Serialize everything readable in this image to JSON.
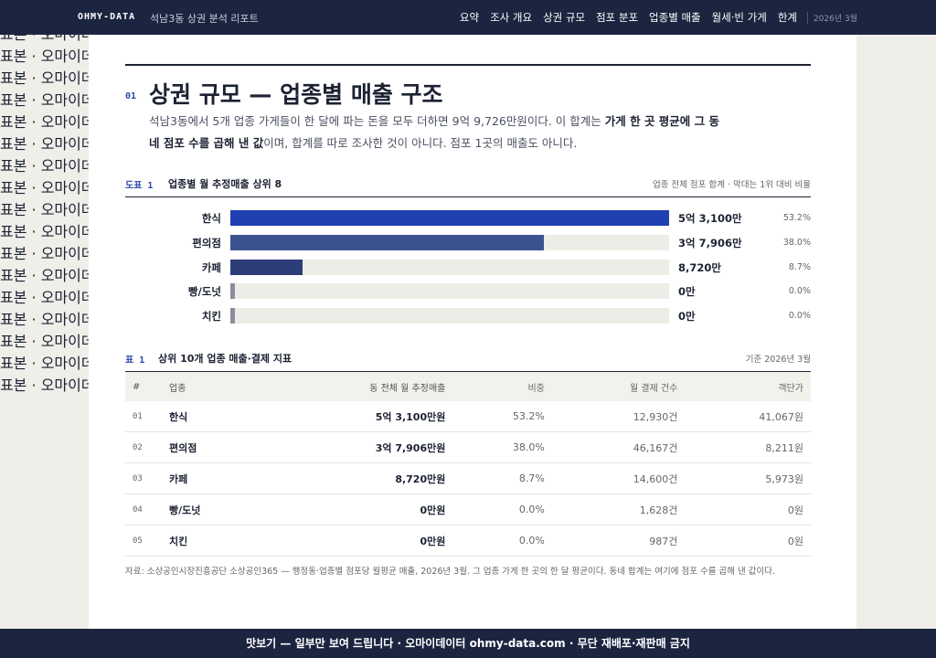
{
  "nav": {
    "brand": "OHMY-DATA",
    "report": "석남3동 상권 분석 리포트",
    "items": [
      "요약",
      "조사 개요",
      "상권 규모",
      "점포 분포",
      "업종별 매출",
      "월세·빈 가게",
      "한계"
    ],
    "date": "2026년 3월"
  },
  "section": {
    "number": "01",
    "heading": "상권 규모 — 업종별 매출 구조",
    "paragraph": [
      {
        "text": "석남3동에서 5개 업종 가게들이 한 달에 파는 돈을 모두 더하면 9억 9,726만원이다. 이 합계는 ",
        "bold": false
      },
      {
        "text": "가게 한 곳 평균에 그 동네 점포 수를 곱해 낸 값",
        "bold": true
      },
      {
        "text": "이며, 합계를 따로 조사한 것이 아니다. 점포 1곳의 매출도 아니다.",
        "bold": false
      }
    ]
  },
  "chart_data": {
    "type": "bar",
    "orientation": "horizontal",
    "label": "도표 1",
    "title": "업종별 월 추정매출 상위 8",
    "note": "업종 전체 점포 합계 · 막대는 1위 대비 비율",
    "categories": [
      "한식",
      "편의점",
      "카페",
      "빵/도넛",
      "치킨"
    ],
    "values": [
      53100,
      37906,
      8720,
      0,
      0
    ],
    "value_labels": [
      "5억 3,100만",
      "3억 7,906만",
      "8,720만",
      "0만",
      "0만"
    ],
    "shares": [
      53.2,
      38.0,
      8.7,
      0.0,
      0.0
    ],
    "share_labels": [
      "53.2%",
      "38.0%",
      "8.7%",
      "0.0%",
      "0.0%"
    ],
    "colors": [
      "#1e40b0",
      "#3b5390",
      "#2c3d78",
      "#8a8f9c",
      "#8a8f9c"
    ],
    "track_color": "#eeece6"
  },
  "table": {
    "label": "표 1",
    "title": "상위 10개 업종 매출·결제 지표",
    "note": "기준 2026년 3월",
    "headers": [
      "#",
      "업종",
      "동 전체 월 추정매출",
      "비중",
      "월 결제 건수",
      "객단가"
    ],
    "rows": [
      [
        "01",
        "한식",
        "5억 3,100만원",
        "53.2%",
        "12,930건",
        "41,067원"
      ],
      [
        "02",
        "편의점",
        "3억 7,906만원",
        "38.0%",
        "46,167건",
        "8,211원"
      ],
      [
        "03",
        "카페",
        "8,720만원",
        "8.7%",
        "14,600건",
        "5,973원"
      ],
      [
        "04",
        "빵/도넛",
        "0만원",
        "0.0%",
        "1,628건",
        "0원"
      ],
      [
        "05",
        "치킨",
        "0만원",
        "0.0%",
        "987건",
        "0원"
      ]
    ]
  },
  "footnote": "자료: 소상공인시장진흥공단 소상공인365 — 행정동·업종별 점포당 월평균 매출, 2026년 3월. 그 업종 가게 한 곳의 한 달 평균이다. 동네 합계는 여기에 점포 수를 곱해 낸 값이다.",
  "watermark": "표본 · 오마이데이터 · ohmy-data.com · 무단 재배포·재판매 금지",
  "banner": "맛보기 — 일부만 보여 드립니다 · 오마이데이터 ohmy-data.com · 무단 재배포·재판매 금지"
}
